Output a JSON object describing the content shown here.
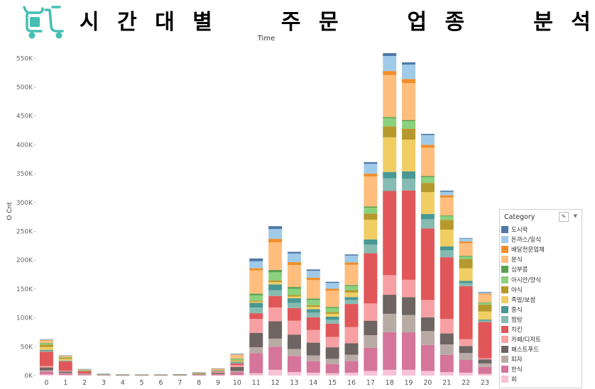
{
  "title_words": [
    "시",
    "간",
    "대",
    "별",
    "주",
    "문",
    "업",
    "종",
    "분",
    "석"
  ],
  "chart_data": {
    "type": "bar",
    "stacked": true,
    "title": "시간대별 주문 업종 분석",
    "xlabel": "Time",
    "ylabel": "O Cnt",
    "ylim": [
      0,
      570000
    ],
    "y_ticks": [
      0,
      50000,
      100000,
      150000,
      200000,
      250000,
      300000,
      350000,
      400000,
      450000,
      500000,
      550000
    ],
    "y_tick_labels": [
      "0K",
      "50K",
      "100K",
      "150K",
      "200K",
      "250K",
      "300K",
      "350K",
      "400K",
      "450K",
      "500K",
      "550K"
    ],
    "categories": [
      "0",
      "1",
      "2",
      "3",
      "4",
      "5",
      "6",
      "7",
      "8",
      "9",
      "10",
      "11",
      "12",
      "13",
      "14",
      "15",
      "16",
      "17",
      "18",
      "19",
      "20",
      "21",
      "22",
      "23"
    ],
    "legend_title": "Category",
    "legend_position": "right",
    "grid": false,
    "series": [
      {
        "name": "회",
        "color": "#f7c3d5",
        "values": [
          2000,
          1000,
          500,
          200,
          100,
          100,
          100,
          100,
          200,
          300,
          1000,
          4000,
          10000,
          6000,
          5000,
          4000,
          5000,
          8000,
          10000,
          10000,
          8000,
          6000,
          5000,
          3000
        ]
      },
      {
        "name": "한식",
        "color": "#d5759a",
        "values": [
          5000,
          2500,
          1000,
          300,
          200,
          200,
          200,
          300,
          800,
          2000,
          5000,
          35000,
          40000,
          28000,
          20000,
          16000,
          20000,
          40000,
          65000,
          65000,
          45000,
          30000,
          22000,
          12000
        ]
      },
      {
        "name": "피자",
        "color": "#b8aba6",
        "values": [
          2000,
          1000,
          500,
          200,
          100,
          100,
          100,
          100,
          200,
          500,
          2000,
          10000,
          14000,
          12000,
          10000,
          9000,
          11000,
          22000,
          32000,
          30000,
          24000,
          18000,
          12000,
          6000
        ]
      },
      {
        "name": "패스트푸드",
        "color": "#6e6462",
        "values": [
          5000,
          2500,
          1000,
          300,
          200,
          200,
          200,
          300,
          800,
          2000,
          7000,
          25000,
          30000,
          25000,
          22000,
          20000,
          20000,
          25000,
          33000,
          31000,
          24000,
          19000,
          12000,
          7000
        ]
      },
      {
        "name": "카페/디저트",
        "color": "#f7a0a3",
        "values": [
          2500,
          1500,
          800,
          200,
          100,
          100,
          100,
          100,
          500,
          1500,
          3000,
          24000,
          24000,
          24000,
          22000,
          18000,
          28000,
          30000,
          34000,
          30000,
          30000,
          25000,
          12000,
          2000
        ]
      },
      {
        "name": "치킨",
        "color": "#e15759",
        "values": [
          25000,
          16000,
          4000,
          500,
          200,
          200,
          200,
          300,
          400,
          1000,
          3000,
          10000,
          20000,
          22000,
          22000,
          23000,
          40000,
          87000,
          146000,
          155000,
          124000,
          107000,
          92000,
          63000
        ]
      },
      {
        "name": "찜탕",
        "color": "#86bbb2",
        "values": [
          1500,
          800,
          300,
          200,
          100,
          100,
          100,
          100,
          300,
          500,
          1500,
          10000,
          10000,
          9000,
          8000,
          7000,
          7000,
          15000,
          22000,
          20000,
          16000,
          12000,
          5000,
          2000
        ]
      },
      {
        "name": "중식",
        "color": "#499894",
        "values": [
          1500,
          700,
          200,
          100,
          100,
          100,
          100,
          100,
          300,
          500,
          1500,
          8000,
          10000,
          8000,
          6000,
          5000,
          5000,
          9000,
          11000,
          13000,
          9000,
          7000,
          4000,
          2000
        ]
      },
      {
        "name": "족발/보쌈",
        "color": "#f1ce63",
        "values": [
          5000,
          2500,
          800,
          200,
          100,
          100,
          100,
          100,
          300,
          500,
          2000,
          2000,
          4000,
          3000,
          4000,
          5000,
          8000,
          34000,
          60000,
          55000,
          38000,
          29000,
          22000,
          14000
        ]
      },
      {
        "name": "야식",
        "color": "#b6992d",
        "values": [
          4000,
          2000,
          500,
          200,
          100,
          100,
          100,
          100,
          200,
          300,
          1000,
          2000,
          3000,
          2500,
          3000,
          3000,
          4000,
          11000,
          19000,
          19000,
          16000,
          17000,
          16000,
          12000
        ]
      },
      {
        "name": "아시안/양식",
        "color": "#8cd17d",
        "values": [
          2500,
          1000,
          300,
          100,
          100,
          100,
          100,
          100,
          300,
          500,
          2000,
          9000,
          14000,
          11000,
          9000,
          7000,
          7000,
          10000,
          14000,
          13000,
          10000,
          6000,
          4000,
          2500
        ]
      },
      {
        "name": "심부름",
        "color": "#59a14f",
        "values": [
          500,
          300,
          100,
          100,
          100,
          100,
          100,
          100,
          200,
          300,
          500,
          3000,
          4000,
          3000,
          2500,
          2000,
          2000,
          2000,
          2000,
          2000,
          2000,
          1500,
          1500,
          1000
        ]
      },
      {
        "name": "분식",
        "color": "#ffbe7d",
        "values": [
          4000,
          2000,
          800,
          200,
          200,
          100,
          100,
          200,
          400,
          1500,
          6000,
          40000,
          48000,
          38000,
          32000,
          28000,
          35000,
          52000,
          73000,
          64000,
          49000,
          31000,
          22000,
          14000
        ]
      },
      {
        "name": "배달전문업체",
        "color": "#f28e2b",
        "values": [
          1000,
          500,
          200,
          100,
          100,
          100,
          100,
          100,
          200,
          300,
          800,
          4000,
          6000,
          5000,
          4000,
          3500,
          4000,
          5000,
          7000,
          7000,
          5000,
          4000,
          3000,
          1500
        ]
      },
      {
        "name": "돈까스/일식",
        "color": "#a0cbe8",
        "values": [
          1000,
          500,
          200,
          100,
          100,
          100,
          100,
          100,
          300,
          500,
          1500,
          12000,
          17000,
          15000,
          12000,
          10000,
          12000,
          17000,
          26000,
          25000,
          17000,
          6000,
          5000,
          2000
        ]
      },
      {
        "name": "도시락",
        "color": "#4e79a7",
        "values": [
          500,
          300,
          100,
          100,
          100,
          100,
          100,
          100,
          100,
          200,
          500,
          5000,
          5000,
          3000,
          2500,
          2000,
          2000,
          3000,
          5000,
          4000,
          2000,
          2000,
          1000,
          1000
        ]
      }
    ]
  }
}
